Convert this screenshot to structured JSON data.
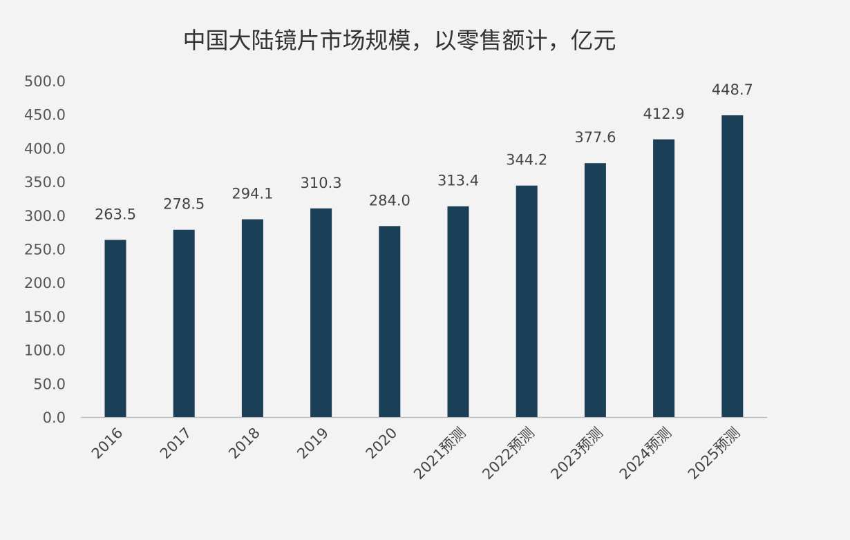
{
  "chart_data": {
    "type": "bar",
    "title": "中国大陆镜片市场规模，以零售额计，亿元",
    "xlabel": "",
    "ylabel": "",
    "categories": [
      "2016",
      "2017",
      "2018",
      "2019",
      "2020",
      "2021预测",
      "2022预测",
      "2023预测",
      "2024预测",
      "2025预测"
    ],
    "values": [
      263.5,
      278.5,
      294.1,
      310.3,
      284.0,
      313.4,
      344.2,
      377.6,
      412.9,
      448.7
    ],
    "data_labels": [
      "263.5",
      "278.5",
      "294.1",
      "310.3",
      "284.0",
      "313.4",
      "344.2",
      "377.6",
      "412.9",
      "448.7"
    ],
    "ylim": [
      0,
      500
    ],
    "yticks": [
      "0.0",
      "50.0",
      "100.0",
      "150.0",
      "200.0",
      "250.0",
      "300.0",
      "350.0",
      "400.0",
      "450.0",
      "500.0"
    ],
    "grid": false,
    "legend": "none",
    "colors": {
      "bar": "#1b3f57",
      "background": "#f3f3f3",
      "axis": "#bdbdbd"
    }
  }
}
